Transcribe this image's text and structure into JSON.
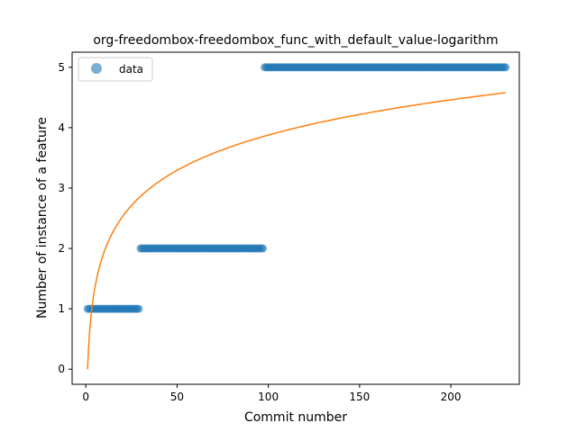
{
  "chart_data": {
    "type": "scatter",
    "title": "org-freedombox-freedombox_func_with_default_value-logarithm",
    "xlabel": "Commit number",
    "ylabel": "Number of instance of a feature",
    "xlim": [
      -7.5,
      237.5
    ],
    "ylim": [
      -0.25,
      5.25
    ],
    "x_ticks": [
      0,
      50,
      100,
      150,
      200
    ],
    "y_ticks": [
      0,
      1,
      2,
      3,
      4,
      5
    ],
    "legend": {
      "position": "top-left",
      "entries": [
        "data"
      ]
    },
    "grid": false,
    "series": [
      {
        "name": "data",
        "kind": "scatter",
        "color": "#1f77b4",
        "segments": [
          {
            "x_start": 1,
            "x_end": 29,
            "y": 1
          },
          {
            "x_start": 30,
            "x_end": 97,
            "y": 2
          },
          {
            "x_start": 98,
            "x_end": 230,
            "y": 5
          }
        ]
      },
      {
        "kind": "line",
        "color": "#ff7f0e",
        "model": "y = a * ln(x)",
        "a": 0.842,
        "x_range": [
          1,
          230
        ]
      }
    ]
  }
}
